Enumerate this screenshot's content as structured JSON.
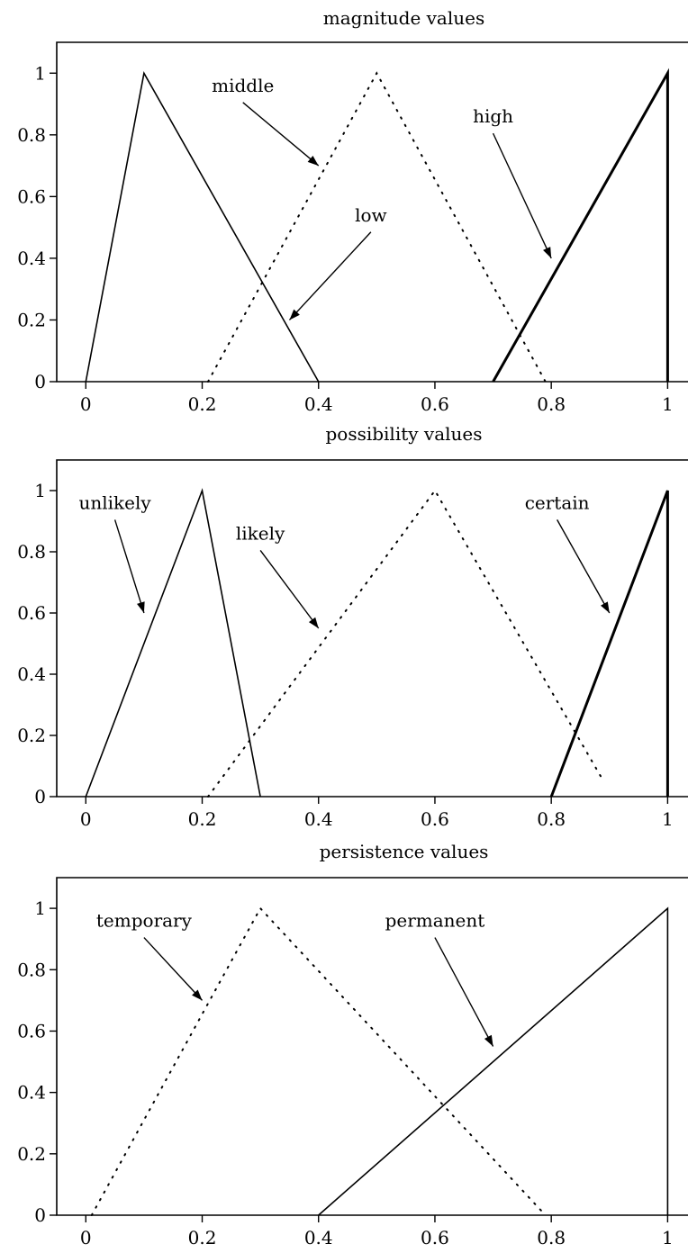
{
  "chart_data": [
    {
      "type": "line",
      "title": "magnitude values",
      "xlim": [
        -0.05,
        1.035
      ],
      "ylim": [
        0,
        1.1
      ],
      "xticks": [
        {
          "value": 0,
          "label": "0"
        },
        {
          "value": 0.2,
          "label": "0.2"
        },
        {
          "value": 0.4,
          "label": "0.4"
        },
        {
          "value": 0.6,
          "label": "0.6"
        },
        {
          "value": 0.8,
          "label": "0.8"
        },
        {
          "value": 1,
          "label": "1"
        }
      ],
      "yticks": [
        {
          "value": 0,
          "label": "0"
        },
        {
          "value": 0.2,
          "label": "0.2"
        },
        {
          "value": 0.4,
          "label": "0.4"
        },
        {
          "value": 0.6,
          "label": "0.6"
        },
        {
          "value": 0.8,
          "label": "0.8"
        },
        {
          "value": 1,
          "label": "1"
        }
      ],
      "series": [
        {
          "name": "low",
          "style": "solid",
          "x": [
            0,
            0.1,
            0.4
          ],
          "y": [
            0,
            1,
            0
          ]
        },
        {
          "name": "middle",
          "style": "dotted",
          "x": [
            0.21,
            0.5,
            0.79
          ],
          "y": [
            0,
            1,
            0
          ]
        },
        {
          "name": "high",
          "style": "bold",
          "x": [
            0.7,
            1,
            1
          ],
          "y": [
            0,
            1,
            0
          ]
        }
      ],
      "annotations": [
        {
          "text": "middle",
          "x": 0.27,
          "y": 0.94,
          "arrow_to": [
            0.4,
            0.7
          ]
        },
        {
          "text": "high",
          "x": 0.7,
          "y": 0.84,
          "arrow_to": [
            0.8,
            0.4
          ]
        },
        {
          "text": "low",
          "x": 0.49,
          "y": 0.52,
          "arrow_to": [
            0.35,
            0.2
          ]
        }
      ]
    },
    {
      "type": "line",
      "title": "possibility values",
      "xlim": [
        -0.05,
        1.035
      ],
      "ylim": [
        0,
        1.1
      ],
      "xticks": [
        {
          "value": 0,
          "label": "0"
        },
        {
          "value": 0.2,
          "label": "0.2"
        },
        {
          "value": 0.4,
          "label": "0.4"
        },
        {
          "value": 0.6,
          "label": "0.6"
        },
        {
          "value": 0.8,
          "label": "0.8"
        },
        {
          "value": 1,
          "label": "1"
        }
      ],
      "yticks": [
        {
          "value": 0,
          "label": "0"
        },
        {
          "value": 0.2,
          "label": "0.2"
        },
        {
          "value": 0.4,
          "label": "0.4"
        },
        {
          "value": 0.6,
          "label": "0.6"
        },
        {
          "value": 0.8,
          "label": "0.8"
        },
        {
          "value": 1,
          "label": "1"
        }
      ],
      "series": [
        {
          "name": "unlikely",
          "style": "solid",
          "x": [
            0,
            0.2,
            0.3
          ],
          "y": [
            0,
            1,
            0
          ]
        },
        {
          "name": "likely",
          "style": "dotted",
          "x": [
            0.21,
            0.6,
            0.89
          ],
          "y": [
            0,
            1,
            0.05
          ]
        },
        {
          "name": "certain",
          "style": "bold",
          "x": [
            0.8,
            1,
            1
          ],
          "y": [
            0,
            1,
            0
          ]
        }
      ],
      "annotations": [
        {
          "text": "unlikely",
          "x": 0.05,
          "y": 0.94,
          "arrow_to": [
            0.1,
            0.6
          ]
        },
        {
          "text": "likely",
          "x": 0.3,
          "y": 0.84,
          "arrow_to": [
            0.4,
            0.55
          ]
        },
        {
          "text": "certain",
          "x": 0.81,
          "y": 0.94,
          "arrow_to": [
            0.9,
            0.6
          ]
        }
      ]
    },
    {
      "type": "line",
      "title": "persistence values",
      "xlim": [
        -0.05,
        1.035
      ],
      "ylim": [
        0,
        1.1
      ],
      "xticks": [
        {
          "value": 0,
          "label": "0"
        },
        {
          "value": 0.2,
          "label": "0.2"
        },
        {
          "value": 0.4,
          "label": "0.4"
        },
        {
          "value": 0.6,
          "label": "0.6"
        },
        {
          "value": 0.8,
          "label": "0.8"
        },
        {
          "value": 1,
          "label": "1"
        }
      ],
      "yticks": [
        {
          "value": 0,
          "label": "0"
        },
        {
          "value": 0.2,
          "label": "0.2"
        },
        {
          "value": 0.4,
          "label": "0.4"
        },
        {
          "value": 0.6,
          "label": "0.6"
        },
        {
          "value": 0.8,
          "label": "0.8"
        },
        {
          "value": 1,
          "label": "1"
        }
      ],
      "series": [
        {
          "name": "temporary",
          "style": "dotted",
          "x": [
            0.01,
            0.3,
            0.79
          ],
          "y": [
            0,
            1,
            0
          ]
        },
        {
          "name": "permanent",
          "style": "solid",
          "x": [
            0.4,
            1,
            1
          ],
          "y": [
            0,
            1,
            0
          ]
        }
      ],
      "annotations": [
        {
          "text": "temporary",
          "x": 0.1,
          "y": 0.94,
          "arrow_to": [
            0.2,
            0.7
          ]
        },
        {
          "text": "permanent",
          "x": 0.6,
          "y": 0.94,
          "arrow_to": [
            0.7,
            0.55
          ]
        }
      ]
    }
  ]
}
